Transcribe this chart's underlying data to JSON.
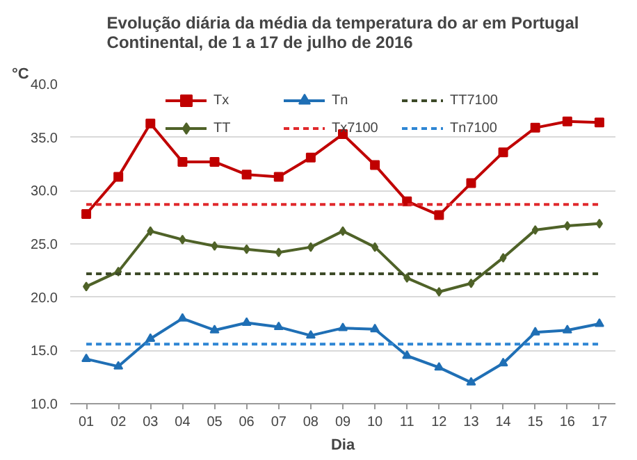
{
  "chart_data": {
    "type": "line",
    "title": "Evolução diária da média da temperatura do ar em Portugal\nContinental, de 1 a 17 de julho de 2016",
    "xlabel": "Dia",
    "ylabel": "°C",
    "categories": [
      "01",
      "02",
      "03",
      "04",
      "05",
      "06",
      "07",
      "08",
      "09",
      "10",
      "11",
      "12",
      "13",
      "14",
      "15",
      "16",
      "17"
    ],
    "series": [
      {
        "name": "Tx",
        "color": "#c00000",
        "marker": "square",
        "values": [
          27.8,
          31.3,
          36.3,
          32.7,
          32.7,
          31.5,
          31.3,
          33.1,
          35.3,
          32.4,
          29.0,
          27.7,
          30.7,
          33.6,
          35.9,
          36.5,
          36.4
        ]
      },
      {
        "name": "TT",
        "color": "#4f6228",
        "marker": "diamond",
        "values": [
          21.0,
          22.4,
          26.2,
          25.4,
          24.8,
          24.5,
          24.2,
          24.7,
          26.2,
          24.7,
          21.8,
          20.5,
          21.3,
          23.7,
          26.3,
          26.7,
          26.9
        ]
      },
      {
        "name": "Tn",
        "color": "#1f6fb5",
        "marker": "triangle",
        "values": [
          14.2,
          13.5,
          16.1,
          18.0,
          16.9,
          17.6,
          17.2,
          16.4,
          17.1,
          17.0,
          14.5,
          13.4,
          12.0,
          13.8,
          16.7,
          16.9,
          17.5
        ]
      },
      {
        "name": "Tx7100",
        "color": "#e0282c",
        "marker": "none",
        "line_style": "dashed",
        "values": [
          28.7,
          28.7,
          28.7,
          28.7,
          28.7,
          28.7,
          28.7,
          28.7,
          28.7,
          28.7,
          28.7,
          28.7,
          28.7,
          28.7,
          28.7,
          28.7,
          28.7
        ]
      },
      {
        "name": "TT7100",
        "color": "#3d4a28",
        "marker": "none",
        "line_style": "dashed",
        "values": [
          22.2,
          22.2,
          22.2,
          22.2,
          22.2,
          22.2,
          22.2,
          22.2,
          22.2,
          22.2,
          22.2,
          22.2,
          22.2,
          22.2,
          22.2,
          22.2,
          22.2
        ]
      },
      {
        "name": "Tn7100",
        "color": "#2e86d4",
        "marker": "none",
        "line_style": "dashed",
        "values": [
          15.6,
          15.6,
          15.6,
          15.6,
          15.6,
          15.6,
          15.6,
          15.6,
          15.6,
          15.6,
          15.6,
          15.6,
          15.6,
          15.6,
          15.6,
          15.6,
          15.6
        ]
      }
    ],
    "ylim": [
      10,
      40
    ],
    "yticks": [
      {
        "value": 10,
        "label": "10.0"
      },
      {
        "value": 15,
        "label": "15.0"
      },
      {
        "value": 20,
        "label": "20.0"
      },
      {
        "value": 25,
        "label": "25.0"
      },
      {
        "value": 30,
        "label": "30.0"
      },
      {
        "value": 35,
        "label": "35.0"
      },
      {
        "value": 40,
        "label": "40.0"
      }
    ],
    "grid": "y",
    "legend": "top",
    "line_style": "solid"
  }
}
